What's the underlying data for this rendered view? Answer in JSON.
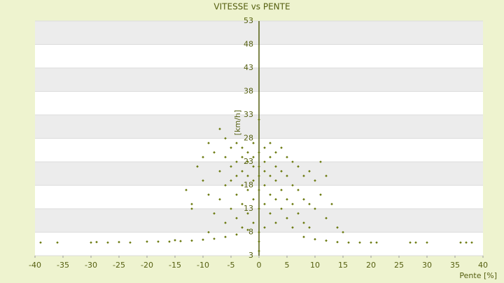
{
  "chart_data": {
    "type": "scatter",
    "title": "VITESSE vs PENTE",
    "x_label": "Pente [%]",
    "y_label": "[km/h]",
    "xlim": [
      -40,
      40
    ],
    "ylim": [
      3,
      53
    ],
    "xticks": [
      -40,
      -35,
      -30,
      -25,
      -20,
      -15,
      -10,
      -5,
      0,
      5,
      10,
      15,
      20,
      25,
      30,
      35,
      40
    ],
    "yticks": [
      3,
      8,
      13,
      18,
      23,
      28,
      33,
      38,
      43,
      48,
      53
    ],
    "color": "#6b7a10",
    "grid": true,
    "x": [
      -39,
      -36,
      -30,
      -29,
      -27,
      -25,
      -23,
      -20,
      -18,
      -16,
      -14,
      -12,
      -10,
      -8,
      -6,
      -4,
      -2,
      14,
      16,
      18,
      20,
      21,
      27,
      28,
      30,
      36,
      37,
      38,
      12,
      10,
      8,
      -13,
      -12,
      -12,
      -11,
      -10,
      -10,
      -9,
      -9,
      -8,
      -8,
      -7,
      -7,
      -7,
      -6,
      -6,
      -6,
      -6,
      -5,
      -5,
      -5,
      -5,
      -4,
      -4,
      -4,
      -4,
      -4,
      -3,
      -3,
      -3,
      -3,
      -3,
      -3,
      -2,
      -2,
      -2,
      -2,
      -2,
      -1,
      -1,
      -1,
      -1,
      -1,
      -1,
      0,
      0,
      0,
      0,
      0,
      0,
      0,
      1,
      1,
      1,
      1,
      1,
      1,
      2,
      2,
      2,
      2,
      2,
      3,
      3,
      3,
      3,
      3,
      4,
      4,
      4,
      4,
      5,
      5,
      5,
      5,
      6,
      6,
      6,
      6,
      7,
      7,
      7,
      8,
      8,
      8,
      9,
      9,
      9,
      10,
      10,
      11,
      11,
      12,
      12,
      13,
      14,
      15,
      -15,
      -9,
      0,
      0
    ],
    "y": [
      5.8,
      5.8,
      5.8,
      5.9,
      5.8,
      5.9,
      5.8,
      6,
      6,
      6,
      6.1,
      6.2,
      6.4,
      6.6,
      7,
      7.5,
      8.5,
      5.9,
      5.8,
      5.8,
      5.8,
      5.8,
      5.8,
      5.8,
      5.8,
      5.8,
      5.8,
      5.8,
      6.2,
      6.5,
      7,
      17,
      14,
      13,
      22,
      24,
      19,
      27,
      16,
      25,
      12,
      30,
      21,
      15,
      28,
      24,
      18,
      10,
      26,
      22,
      19,
      13,
      27,
      23,
      20,
      16,
      11,
      26,
      24,
      21,
      18,
      14,
      9,
      25,
      23,
      20,
      17,
      12,
      27,
      24,
      22,
      19,
      15,
      10,
      32,
      25,
      22,
      20,
      17,
      13,
      8,
      26,
      23,
      21,
      18,
      14,
      9,
      27,
      24,
      20,
      16,
      12,
      25,
      22,
      19,
      15,
      10,
      26,
      21,
      17,
      13,
      24,
      20,
      15,
      11,
      23,
      18,
      14,
      9,
      22,
      17,
      12,
      20,
      15,
      10,
      21,
      14,
      9,
      19,
      13,
      23,
      16,
      20,
      11,
      14,
      9,
      8,
      6.3,
      8,
      4,
      6
    ]
  }
}
